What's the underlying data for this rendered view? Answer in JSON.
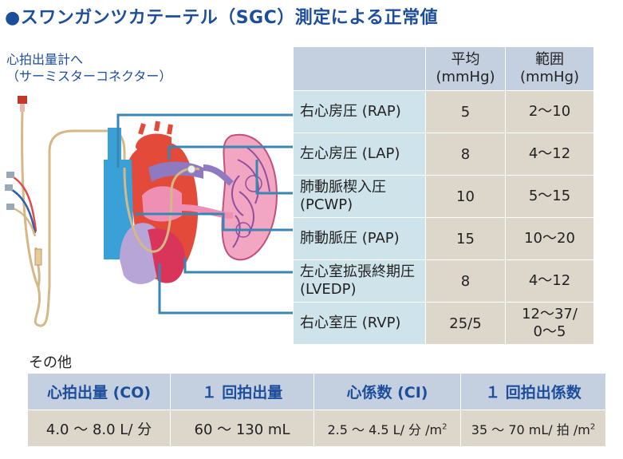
{
  "title": "●スワンガンツカテーテル（SGC）測定による正常値",
  "catheter_label": {
    "line1": "心拍出量計へ",
    "line2": "（サーミスターコネクター）"
  },
  "pressure_table": {
    "headers": {
      "avg_line1": "平均",
      "avg_line2": "(mmHg)",
      "range_line1": "範囲",
      "range_line2": "(mmHg)"
    },
    "rows": [
      {
        "label": "右心房圧 (RAP)",
        "label2": "",
        "avg": "5",
        "range": "2〜10",
        "range2": ""
      },
      {
        "label": "左心房圧 (LAP)",
        "label2": "",
        "avg": "8",
        "range": "4〜12",
        "range2": ""
      },
      {
        "label": "肺動脈楔入圧",
        "label2": "(PCWP)",
        "avg": "10",
        "range": "5〜15",
        "range2": ""
      },
      {
        "label": "肺動脈圧 (PAP)",
        "label2": "",
        "avg": "15",
        "range": "10〜20",
        "range2": ""
      },
      {
        "label": "左心室拡張終期圧",
        "label2": "(LVEDP)",
        "avg": "8",
        "range": "4〜12",
        "range2": ""
      },
      {
        "label": "右心室圧 (RVP)",
        "label2": "",
        "avg": "25/5",
        "range": "12〜37/",
        "range2": "0〜5"
      }
    ]
  },
  "other": {
    "label": "その他",
    "headers": [
      "心拍出量 (CO)",
      "１ 回拍出量",
      "心係数 (CI)",
      "１ 回拍出係数"
    ],
    "values": [
      {
        "text": "4.0 〜 8.0 L/ 分",
        "sup": ""
      },
      {
        "text": "60 〜 130 mL",
        "sup": ""
      },
      {
        "text": "2.5 〜 4.5 L/ 分 /m",
        "sup": "2"
      },
      {
        "text": "35 〜 70 mL/ 拍 /m",
        "sup": "2"
      }
    ]
  },
  "colors": {
    "title": "#1d4e9c",
    "header_bg": "#c4cfe0",
    "label_bg": "#cfe3ea",
    "value_bg": "#dcd6cb",
    "leader_line": "#3a86b3"
  }
}
